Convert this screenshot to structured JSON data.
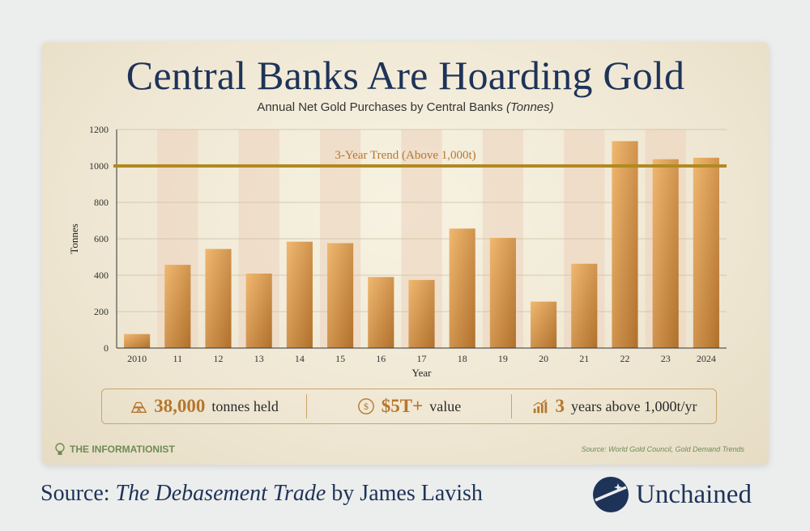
{
  "colors": {
    "navy": "#1e3358",
    "gold_light": "#f0b870",
    "gold_dark": "#b0702c",
    "trend_line": "#b08a20",
    "stripe": "#ecd5c0",
    "brand_green": "#6f8b55"
  },
  "card": {
    "title": "Central Banks Are Hoarding Gold",
    "subtitle_main": "Annual Net Gold Purchases by Central Banks",
    "subtitle_unit": "(Tonnes)",
    "stats": [
      {
        "icon": "gold-bars-icon",
        "big": "38,000",
        "small": "tonnes held"
      },
      {
        "icon": "dollar-coin-icon",
        "big": "$5T+",
        "small": "value"
      },
      {
        "icon": "bar-growth-icon",
        "big": "3",
        "small": "years above 1,000t/yr"
      }
    ],
    "brand": "THE INFORMATIONIST",
    "source_note": "Source: World Gold Council, Gold Demand Trends"
  },
  "footer": {
    "source_prefix": "Source: ",
    "book": "The Debasement Trade",
    "author": " by James Lavish",
    "logo_text": "Unchained"
  },
  "chart_data": {
    "type": "bar",
    "categories": [
      "2010",
      "11",
      "12",
      "13",
      "14",
      "15",
      "16",
      "17",
      "18",
      "19",
      "20",
      "21",
      "22",
      "23",
      "2024"
    ],
    "values": [
      77,
      457,
      544,
      409,
      584,
      576,
      390,
      374,
      656,
      605,
      255,
      463,
      1136,
      1037,
      1045
    ],
    "xlabel": "Year",
    "ylabel": "Tonnes",
    "ylim": [
      0,
      1200
    ],
    "yticks": [
      0,
      200,
      400,
      600,
      800,
      1000,
      1200
    ],
    "grid": true,
    "annotation": {
      "value": 1000,
      "label": "3-Year Trend (Above 1,000t)"
    }
  }
}
